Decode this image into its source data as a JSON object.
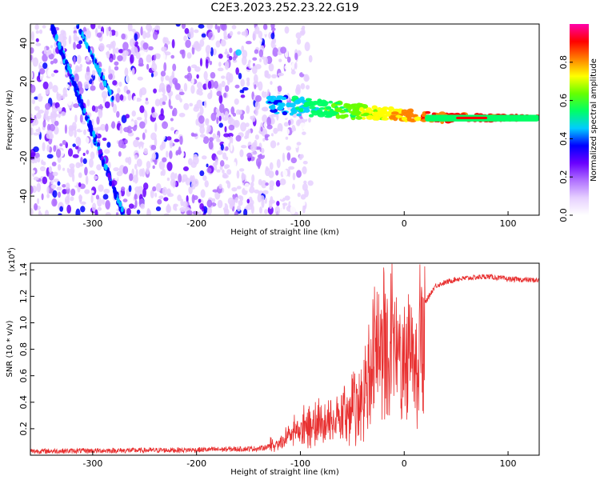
{
  "title": "C2E3.2023.252.23.22.G19",
  "chart_data": [
    {
      "type": "heatmap",
      "name": "spectrogram",
      "xlabel": "Height of straight line (km)",
      "ylabel": "Frequency (Hz)",
      "xlim": [
        -360,
        130
      ],
      "ylim": [
        -50,
        50
      ],
      "xticks": [
        -300,
        -200,
        -100,
        0,
        100
      ],
      "yticks": [
        -40,
        -20,
        0,
        20,
        40
      ],
      "colorbar": {
        "label": "Normalized spectral amplitude",
        "range": [
          0.0,
          1.0
        ],
        "ticks": [
          0.0,
          0.2,
          0.4,
          0.6,
          0.8
        ],
        "colormap": [
          "#ffffff",
          "#e6d0ff",
          "#b070ff",
          "#6a00ff",
          "#0000ff",
          "#00ccff",
          "#00ff66",
          "#66ff00",
          "#ffff00",
          "#ff8000",
          "#ff0000",
          "#ff00aa"
        ]
      },
      "features": [
        {
          "name": "noise region",
          "x_range": [
            -360,
            -120
          ],
          "freq_range": [
            -50,
            50
          ],
          "amplitude": 0.3
        },
        {
          "name": "diagonal streak",
          "x_range": [
            -340,
            -270
          ],
          "freq_range": [
            -50,
            50
          ],
          "amplitude": 0.35
        },
        {
          "name": "carrier line",
          "x_range": [
            -130,
            130
          ],
          "freq_start": 8,
          "freq_end": 1,
          "amplitude_start": 0.45,
          "amplitude_end": 0.95
        }
      ]
    },
    {
      "type": "line",
      "name": "snr",
      "xlabel": "Height of straight line (km)",
      "ylabel": "SNR (10 * v/v)",
      "yscale_note": "(x10",
      "yscale_exp": "4",
      "xlim": [
        -360,
        130
      ],
      "ylim": [
        0,
        1.45
      ],
      "xticks": [
        -300,
        -200,
        -100,
        0,
        100
      ],
      "yticks": [
        0.2,
        0.4,
        0.6,
        0.8,
        1.0,
        1.2,
        1.4
      ],
      "color": "#e83030",
      "envelope": [
        {
          "x": -360,
          "y": 0.03
        },
        {
          "x": -200,
          "y": 0.04
        },
        {
          "x": -140,
          "y": 0.05
        },
        {
          "x": -120,
          "y": 0.08
        },
        {
          "x": -100,
          "y": 0.25
        },
        {
          "x": -80,
          "y": 0.3
        },
        {
          "x": -60,
          "y": 0.35
        },
        {
          "x": -40,
          "y": 0.55
        },
        {
          "x": -30,
          "y": 0.9
        },
        {
          "x": -20,
          "y": 1.05
        },
        {
          "x": -10,
          "y": 1.0
        },
        {
          "x": 0,
          "y": 0.85
        },
        {
          "x": 10,
          "y": 0.95
        },
        {
          "x": 20,
          "y": 1.15
        },
        {
          "x": 30,
          "y": 1.28
        },
        {
          "x": 50,
          "y": 1.33
        },
        {
          "x": 80,
          "y": 1.35
        },
        {
          "x": 100,
          "y": 1.33
        },
        {
          "x": 130,
          "y": 1.32
        }
      ]
    }
  ]
}
